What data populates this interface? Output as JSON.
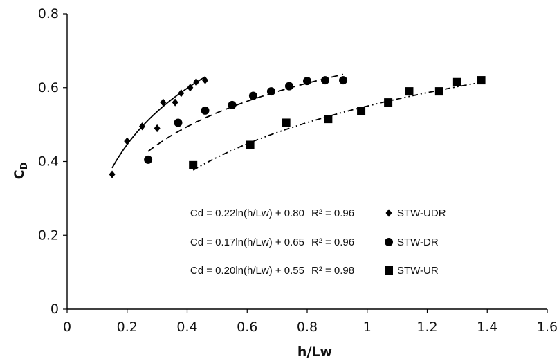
{
  "chart_data": {
    "type": "scatter",
    "xlabel": "h/Lw",
    "ylabel_main": "C",
    "ylabel_sub": "D",
    "xlim": [
      0,
      1.6
    ],
    "ylim": [
      0,
      0.8
    ],
    "x_ticks": [
      "0",
      "0.2",
      "0.4",
      "0.6",
      "0.8",
      "1",
      "1.2",
      "1.4",
      "1.6"
    ],
    "y_ticks": [
      "0",
      "0.2",
      "0.4",
      "0.6",
      "0.8"
    ],
    "grid": false,
    "legend_position": "center-right",
    "series": [
      {
        "name": "STW-UDR",
        "marker": "diamond",
        "line_style": "solid",
        "equation": "Cd = 0.22ln(h/Lw) + 0.80",
        "r2": "R² = 0.96",
        "fit": {
          "a": 0.22,
          "b": 0.8,
          "x_range": [
            0.15,
            0.46
          ]
        },
        "points": [
          [
            0.15,
            0.365
          ],
          [
            0.2,
            0.455
          ],
          [
            0.25,
            0.495
          ],
          [
            0.3,
            0.49
          ],
          [
            0.32,
            0.56
          ],
          [
            0.36,
            0.56
          ],
          [
            0.38,
            0.585
          ],
          [
            0.41,
            0.6
          ],
          [
            0.43,
            0.615
          ],
          [
            0.46,
            0.62
          ]
        ]
      },
      {
        "name": "STW-DR",
        "marker": "circle",
        "line_style": "dashed",
        "equation": "Cd = 0.17ln(h/Lw) + 0.65",
        "r2": "R² = 0.96",
        "fit": {
          "a": 0.17,
          "b": 0.65,
          "x_range": [
            0.27,
            0.92
          ]
        },
        "points": [
          [
            0.27,
            0.405
          ],
          [
            0.37,
            0.505
          ],
          [
            0.46,
            0.538
          ],
          [
            0.55,
            0.553
          ],
          [
            0.62,
            0.578
          ],
          [
            0.68,
            0.59
          ],
          [
            0.74,
            0.604
          ],
          [
            0.8,
            0.618
          ],
          [
            0.86,
            0.62
          ],
          [
            0.92,
            0.62
          ]
        ]
      },
      {
        "name": "STW-UR",
        "marker": "square",
        "line_style": "dash-dot-dot",
        "equation": "Cd = 0.20ln(h/Lw) + 0.55",
        "r2": "R² = 0.98",
        "fit": {
          "a": 0.2,
          "b": 0.55,
          "x_range": [
            0.42,
            1.38
          ]
        },
        "points": [
          [
            0.42,
            0.39
          ],
          [
            0.61,
            0.445
          ],
          [
            0.73,
            0.505
          ],
          [
            0.87,
            0.515
          ],
          [
            0.98,
            0.537
          ],
          [
            1.07,
            0.56
          ],
          [
            1.14,
            0.59
          ],
          [
            1.24,
            0.59
          ],
          [
            1.3,
            0.615
          ],
          [
            1.38,
            0.62
          ]
        ]
      }
    ]
  }
}
